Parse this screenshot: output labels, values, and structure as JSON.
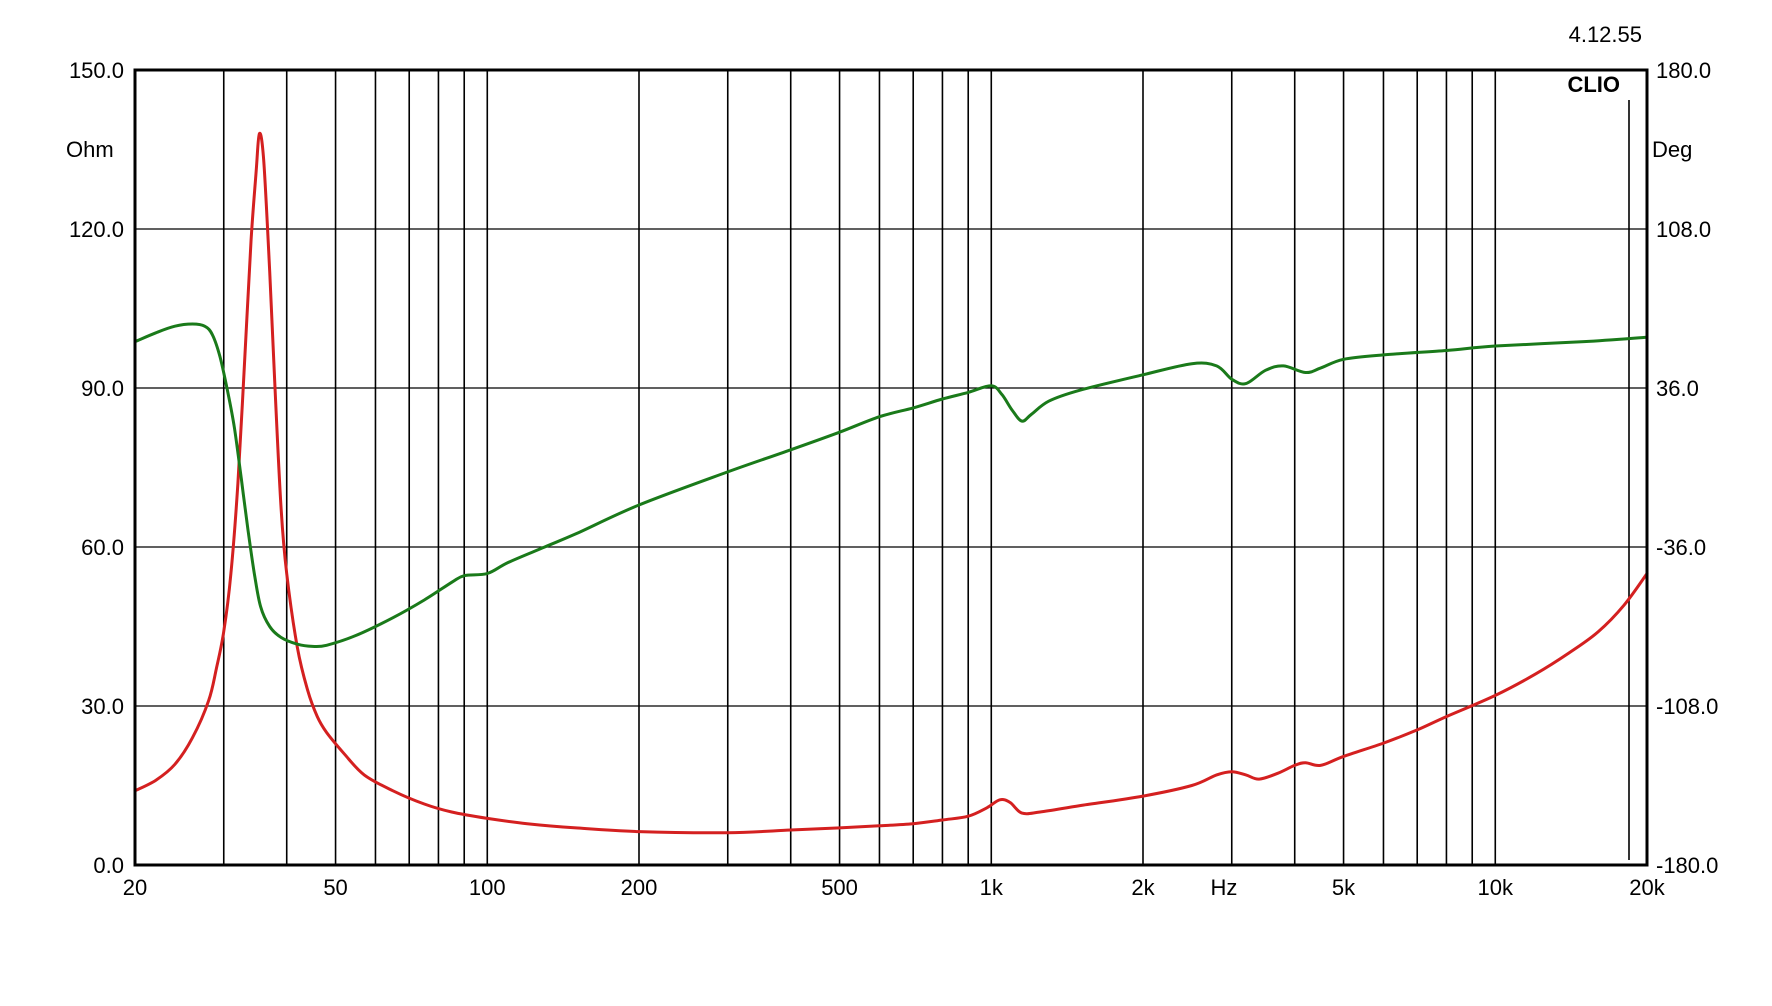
{
  "header": {
    "version": "4.12.55",
    "brand": "CLIO"
  },
  "chart_data": {
    "type": "line",
    "x_scale": "log",
    "xlim": [
      20,
      20000
    ],
    "x_ticks": [
      {
        "value": 20,
        "label": "20"
      },
      {
        "value": 50,
        "label": "50"
      },
      {
        "value": 100,
        "label": "100"
      },
      {
        "value": 200,
        "label": "200"
      },
      {
        "value": 500,
        "label": "500"
      },
      {
        "value": 1000,
        "label": "1k"
      },
      {
        "value": 2000,
        "label": "2k"
      },
      {
        "value": 5000,
        "label": "5k"
      },
      {
        "value": 10000,
        "label": "10k"
      },
      {
        "value": 20000,
        "label": "20k"
      }
    ],
    "x_unit_label": "Hz",
    "y_left": {
      "label": "Ohm",
      "ylim": [
        0,
        150
      ],
      "ticks": [
        "0.0",
        "30.0",
        "60.0",
        "90.0",
        "120.0",
        "150.0"
      ]
    },
    "y_right": {
      "label": "Deg",
      "ylim": [
        -180,
        180
      ],
      "ticks": [
        "-180.0",
        "-108.0",
        "-36.0",
        "36.0",
        "108.0",
        "180.0"
      ]
    },
    "grid": true,
    "series": [
      {
        "color": "#d42020",
        "axis": "left",
        "points": [
          [
            20,
            14
          ],
          [
            22,
            16
          ],
          [
            24,
            19
          ],
          [
            26,
            24
          ],
          [
            28,
            31
          ],
          [
            29,
            37
          ],
          [
            30,
            44
          ],
          [
            31,
            55
          ],
          [
            32,
            72
          ],
          [
            33,
            95
          ],
          [
            34,
            118
          ],
          [
            34.8,
            131
          ],
          [
            35.3,
            138
          ],
          [
            36,
            133
          ],
          [
            37,
            112
          ],
          [
            38,
            88
          ],
          [
            39,
            67
          ],
          [
            40,
            55
          ],
          [
            42,
            41
          ],
          [
            44,
            33
          ],
          [
            46,
            28
          ],
          [
            48,
            25
          ],
          [
            52,
            21
          ],
          [
            57,
            17
          ],
          [
            65,
            14
          ],
          [
            75,
            11.5
          ],
          [
            85,
            10
          ],
          [
            100,
            8.8
          ],
          [
            120,
            7.8
          ],
          [
            150,
            7
          ],
          [
            200,
            6.3
          ],
          [
            300,
            6.1
          ],
          [
            400,
            6.6
          ],
          [
            500,
            7
          ],
          [
            600,
            7.4
          ],
          [
            700,
            7.8
          ],
          [
            800,
            8.5
          ],
          [
            900,
            9.2
          ],
          [
            980,
            10.8
          ],
          [
            1040,
            12.3
          ],
          [
            1090,
            11.8
          ],
          [
            1150,
            9.8
          ],
          [
            1250,
            10
          ],
          [
            1500,
            11.2
          ],
          [
            2000,
            13
          ],
          [
            2500,
            15
          ],
          [
            2800,
            17
          ],
          [
            3000,
            17.6
          ],
          [
            3200,
            17
          ],
          [
            3400,
            16.2
          ],
          [
            3700,
            17.3
          ],
          [
            4000,
            18.8
          ],
          [
            4200,
            19.3
          ],
          [
            4500,
            18.8
          ],
          [
            5000,
            20.5
          ],
          [
            6000,
            23
          ],
          [
            7000,
            25.5
          ],
          [
            8000,
            28
          ],
          [
            10000,
            32
          ],
          [
            12000,
            36
          ],
          [
            14000,
            40
          ],
          [
            16000,
            44
          ],
          [
            18000,
            49
          ],
          [
            20000,
            55
          ]
        ]
      },
      {
        "color": "#1a7a1a",
        "axis": "right",
        "points": [
          [
            20,
            57
          ],
          [
            22,
            61
          ],
          [
            24,
            64
          ],
          [
            26,
            65
          ],
          [
            27.5,
            64
          ],
          [
            28.5,
            60
          ],
          [
            29.5,
            50
          ],
          [
            30.5,
            35
          ],
          [
            31.5,
            18
          ],
          [
            32.5,
            -5
          ],
          [
            33.5,
            -28
          ],
          [
            34.5,
            -48
          ],
          [
            35.5,
            -63
          ],
          [
            37,
            -72
          ],
          [
            39,
            -77
          ],
          [
            42,
            -80
          ],
          [
            45,
            -81
          ],
          [
            48,
            -80.5
          ],
          [
            55,
            -76
          ],
          [
            65,
            -68
          ],
          [
            75,
            -60
          ],
          [
            85,
            -52
          ],
          [
            90,
            -49
          ],
          [
            100,
            -48
          ],
          [
            110,
            -43
          ],
          [
            130,
            -36
          ],
          [
            150,
            -30
          ],
          [
            200,
            -17
          ],
          [
            300,
            -2
          ],
          [
            400,
            8
          ],
          [
            500,
            16
          ],
          [
            600,
            23
          ],
          [
            700,
            27
          ],
          [
            800,
            31
          ],
          [
            900,
            34
          ],
          [
            1000,
            37
          ],
          [
            1050,
            33
          ],
          [
            1100,
            26
          ],
          [
            1150,
            21
          ],
          [
            1200,
            24
          ],
          [
            1300,
            30
          ],
          [
            1500,
            35
          ],
          [
            2000,
            42
          ],
          [
            2500,
            47
          ],
          [
            2800,
            46
          ],
          [
            3000,
            40
          ],
          [
            3200,
            38
          ],
          [
            3500,
            44
          ],
          [
            3800,
            46
          ],
          [
            4200,
            43
          ],
          [
            4500,
            45
          ],
          [
            5000,
            49
          ],
          [
            6000,
            51
          ],
          [
            8000,
            53
          ],
          [
            10000,
            55
          ],
          [
            15000,
            57
          ],
          [
            20000,
            59
          ]
        ]
      }
    ]
  }
}
